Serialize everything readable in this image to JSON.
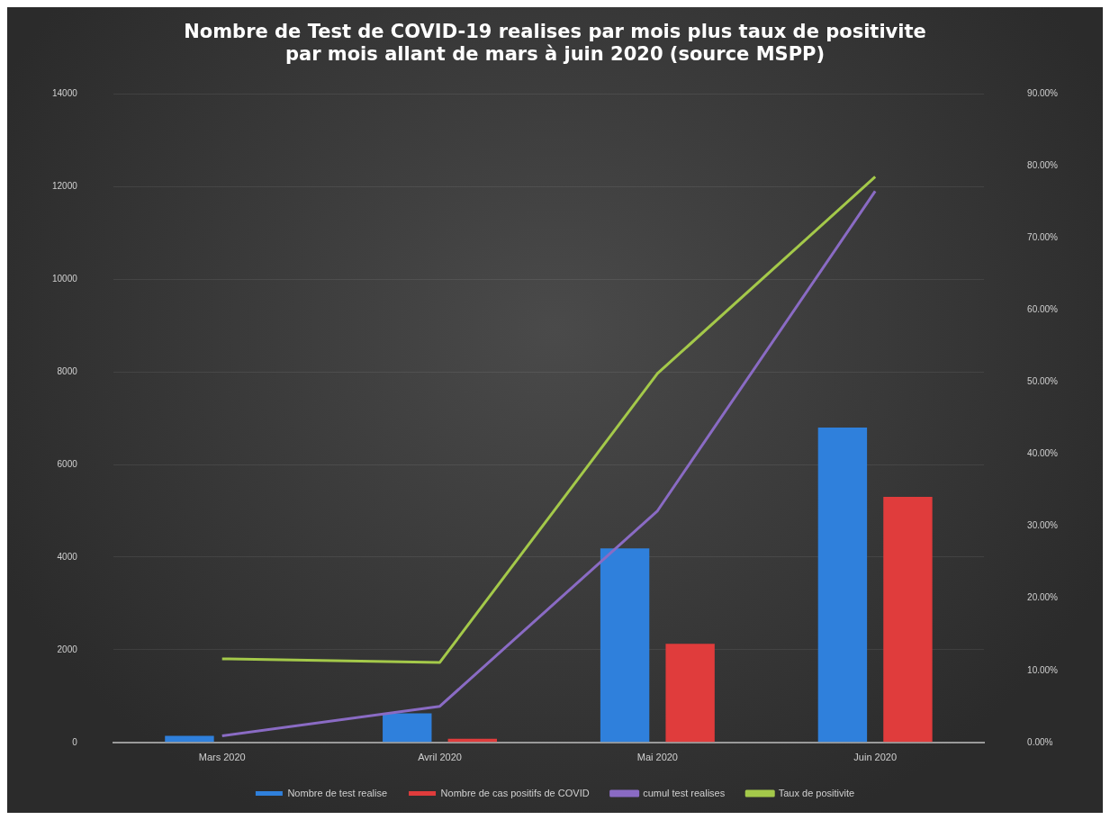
{
  "chart_data": {
    "type": "bar",
    "title": "Nombre de Test de COVID-19 realises par mois plus taux de positivite par mois allant de mars à juin 2020 (source MSPP)",
    "categories": [
      "Mars 2020",
      "Avril 2020",
      "Mai 2020",
      "Juin 2020"
    ],
    "series": [
      {
        "name": "Nombre de test realise",
        "color": "#2f80dc",
        "values": [
          140,
          630,
          4190,
          6800
        ]
      },
      {
        "name": "Nombre de cas positifs de COVID",
        "color": "#e03c3c",
        "values": [
          0,
          80,
          2130,
          5300
        ]
      },
      {
        "name": "cumul test realises",
        "type": "line",
        "color": "#8a6bc4",
        "values": [
          140,
          780,
          5000,
          11900
        ]
      },
      {
        "name": "Taux de positivite",
        "type": "line",
        "axis": "y2",
        "color": "#a4c94a",
        "values": [
          11.6,
          11.1,
          51.2,
          78.5
        ]
      }
    ],
    "ylim": [
      0,
      14000
    ],
    "yticks": [
      0,
      2000,
      4000,
      6000,
      8000,
      10000,
      12000,
      14000
    ],
    "y2lim": [
      0,
      90
    ],
    "y2ticks": [
      {
        "value": 0,
        "label": "0.00%"
      },
      {
        "value": 10,
        "label": "10.00%"
      },
      {
        "value": 20,
        "label": "20.00%"
      },
      {
        "value": 30,
        "label": "30.00%"
      },
      {
        "value": 40,
        "label": "40.00%"
      },
      {
        "value": 50,
        "label": "50.00%"
      },
      {
        "value": 60,
        "label": "60.00%"
      },
      {
        "value": 70,
        "label": "70.00%"
      },
      {
        "value": 80,
        "label": "80.00%"
      },
      {
        "value": 90,
        "label": "90.00%"
      }
    ],
    "grid": "y",
    "legend": "bottom",
    "marker": "none",
    "line_style": "solid"
  }
}
